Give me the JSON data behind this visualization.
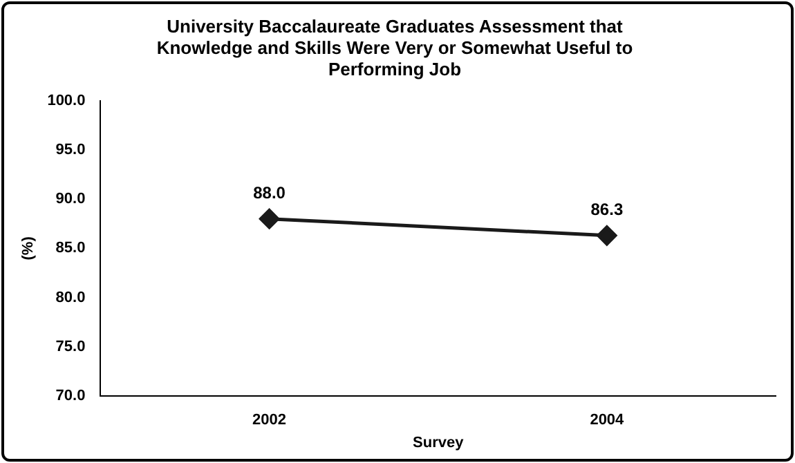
{
  "chart_data": {
    "type": "line",
    "title": [
      "University Baccalaureate Graduates Assessment that",
      "Knowledge and Skills Were Very or Somewhat Useful to",
      "Performing Job"
    ],
    "xlabel": "Survey",
    "ylabel": "(%)",
    "categories": [
      "2002",
      "2004"
    ],
    "series": [
      {
        "color": "#1a1a1a",
        "values": [
          88.0,
          86.3
        ],
        "value_labels": [
          "88.0",
          "86.3"
        ]
      }
    ],
    "ylim": [
      70,
      100
    ],
    "yticks": [
      {
        "value": 70,
        "label": "70.0"
      },
      {
        "value": 75,
        "label": "75.0"
      },
      {
        "value": 80,
        "label": "80.0"
      },
      {
        "value": 85,
        "label": "85.0"
      },
      {
        "value": 90,
        "label": "90.0"
      },
      {
        "value": 95,
        "label": "95.0"
      },
      {
        "value": 100,
        "label": "100.0"
      }
    ],
    "grid": false,
    "legend": false,
    "marker": "diamond",
    "line_style": "solid"
  }
}
